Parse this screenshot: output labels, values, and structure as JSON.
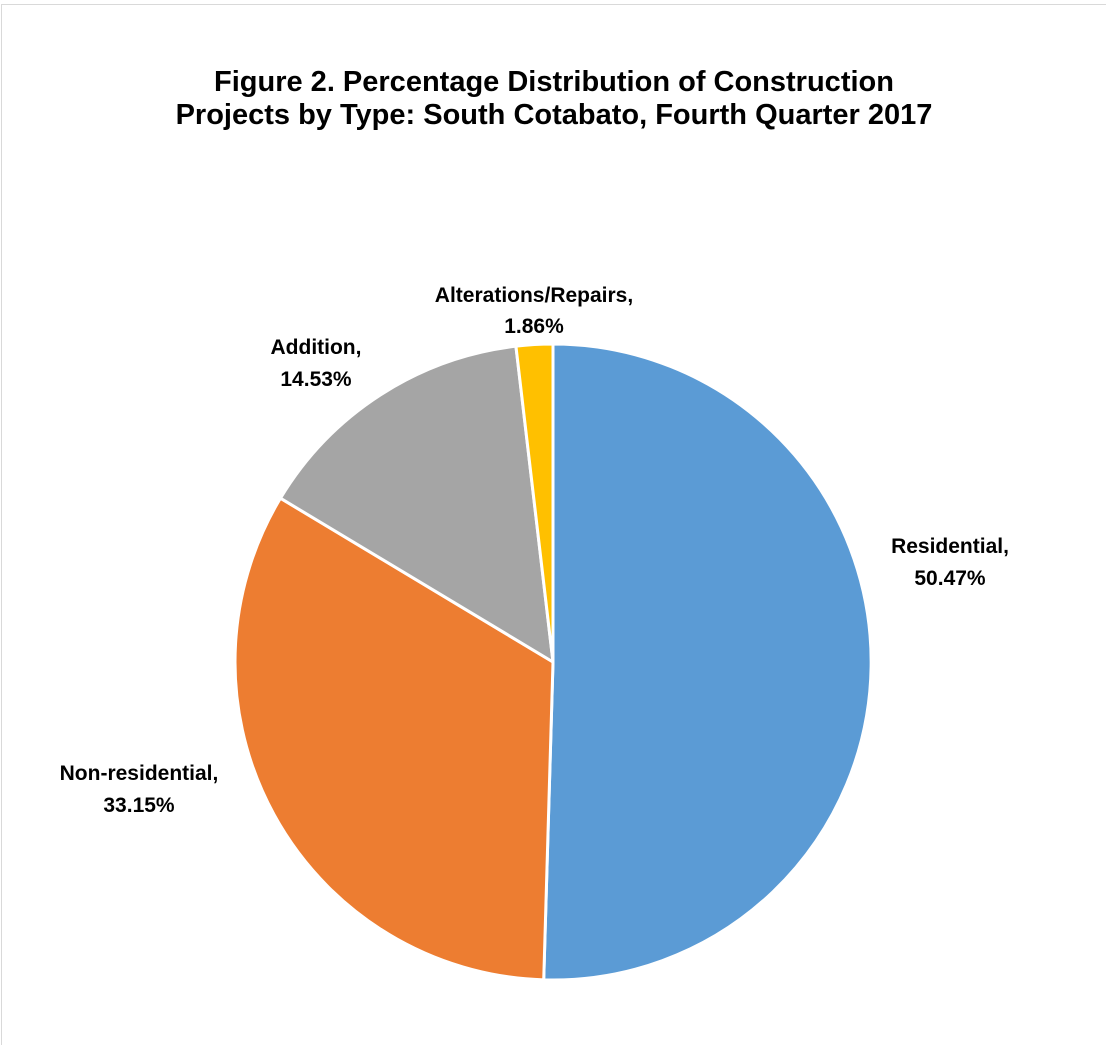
{
  "chart_data": {
    "type": "pie",
    "title": "Figure 2. Percentage Distribution of Construction Projects by Type: South Cotabato, Fourth Quarter 2017",
    "title_lines": [
      "Figure 2. Percentage Distribution of Construction",
      "Projects by Type: South Cotabato, Fourth Quarter 2017"
    ],
    "categories": [
      "Residential",
      "Non-residential",
      "Addition",
      "Alterations/Repairs"
    ],
    "values": [
      50.47,
      33.15,
      14.53,
      1.86
    ],
    "unit": "%",
    "colors": [
      "#5b9bd5",
      "#ed7d31",
      "#a5a5a5",
      "#ffc000"
    ],
    "slice_border_color": "#ffffff",
    "data_labels": [
      {
        "line1": "Residential,",
        "line2": "50.47%"
      },
      {
        "line1": "Non-residential,",
        "line2": "33.15%"
      },
      {
        "line1": "Addition,",
        "line2": "14.53%"
      },
      {
        "line1": "Alterations/Repairs,",
        "line2": "1.86%"
      }
    ],
    "start_angle": "12 o'clock",
    "direction": "clockwise",
    "legend": "none"
  }
}
